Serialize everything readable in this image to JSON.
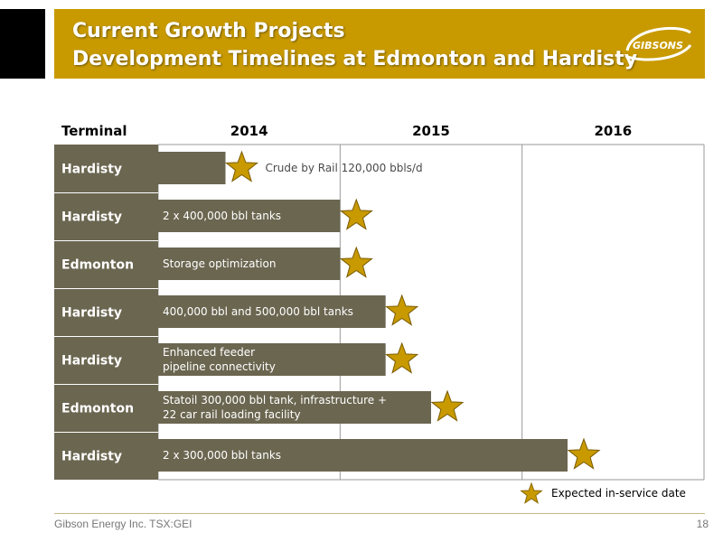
{
  "header": {
    "title_line1": "Current Growth Projects",
    "title_line2": "Development Timelines at Edmonton and Hardisty",
    "logo_text": "GIBSONS"
  },
  "colors": {
    "header_bg": "#c89a00",
    "label_bg": "#6b6650",
    "bar_fill": "#6b6650",
    "star_fill": "#c89a00"
  },
  "chart_data": {
    "type": "timeline",
    "columns": {
      "first_header": "Terminal",
      "years": [
        "2014",
        "2015",
        "2016"
      ]
    },
    "x_range": [
      2014.0,
      2017.0
    ],
    "rows": [
      {
        "terminal": "Hardisty",
        "project": "",
        "end": 2014.37
      },
      {
        "terminal": "Hardisty",
        "project": "2 x 400,000 bbl tanks",
        "end": 2015.0
      },
      {
        "terminal": "Edmonton",
        "project": "Storage optimization",
        "end": 2015.0
      },
      {
        "terminal": "Hardisty",
        "project": "400,000 bbl and 500,000 bbl tanks",
        "end": 2015.25
      },
      {
        "terminal": "Hardisty",
        "project": "Enhanced feeder\npipeline connectivity",
        "end": 2015.25
      },
      {
        "terminal": "Edmonton",
        "project": "Statoil 300,000 bbl tank, infrastructure +\n22 car rail loading facility",
        "end": 2015.5
      },
      {
        "terminal": "Hardisty",
        "project": "2 x 300,000 bbl tanks",
        "end": 2016.25
      }
    ],
    "annotations": [
      {
        "row": 0,
        "text": "Crude by Rail 120,000 bbls/d"
      }
    ],
    "legend": {
      "label": "Expected in-service date",
      "position": "bottom-right"
    }
  },
  "footer": {
    "company": "Gibson Energy Inc.  TSX:GEI",
    "page": "18"
  }
}
